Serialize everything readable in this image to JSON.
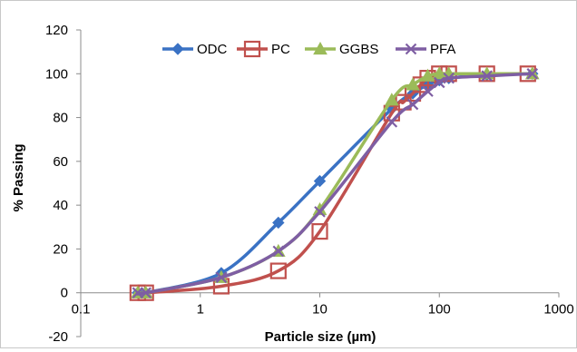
{
  "chart_data": {
    "type": "line",
    "title": "",
    "xlabel": "Particle size (µm)",
    "ylabel": "% Passing",
    "xscale": "log",
    "xlim": [
      0.1,
      1000
    ],
    "ylim": [
      -20,
      120
    ],
    "x_ticks": [
      "0.1",
      "1",
      "10",
      "100",
      "1000"
    ],
    "y_ticks": [
      "-20",
      "0",
      "20",
      "40",
      "60",
      "80",
      "100",
      "120"
    ],
    "grid": false,
    "legend_position": "top",
    "series": [
      {
        "name": "ODC",
        "color": "#3a72c4",
        "marker": "diamond",
        "x": [
          0.3,
          0.35,
          1.5,
          4.5,
          10,
          40,
          60,
          80,
          100,
          120,
          250,
          600
        ],
        "y": [
          0,
          0,
          9,
          32,
          51,
          84,
          91,
          95,
          97,
          98,
          99.5,
          100
        ]
      },
      {
        "name": "PC",
        "color": "#c0504d",
        "marker": "square",
        "x": [
          0.3,
          0.35,
          1.5,
          4.5,
          10,
          40,
          50,
          60,
          70,
          80,
          100,
          120,
          250,
          550
        ],
        "y": [
          0,
          0,
          3,
          10,
          28,
          82,
          87,
          91,
          95,
          98,
          100,
          100,
          100,
          100
        ]
      },
      {
        "name": "GGBS",
        "color": "#9bbb59",
        "marker": "triangle",
        "x": [
          0.3,
          0.35,
          1.5,
          4.5,
          10,
          40,
          60,
          80,
          100,
          120,
          250,
          600
        ],
        "y": [
          0,
          0,
          7,
          19,
          38,
          88,
          95,
          99,
          100,
          100,
          100,
          100
        ]
      },
      {
        "name": "PFA",
        "color": "#7e5ea3",
        "marker": "x",
        "x": [
          0.3,
          0.35,
          1.5,
          4.5,
          10,
          40,
          60,
          80,
          100,
          120,
          250,
          600
        ],
        "y": [
          0,
          0,
          7,
          19,
          37,
          78,
          86,
          92,
          96,
          98,
          99,
          100
        ]
      }
    ]
  }
}
